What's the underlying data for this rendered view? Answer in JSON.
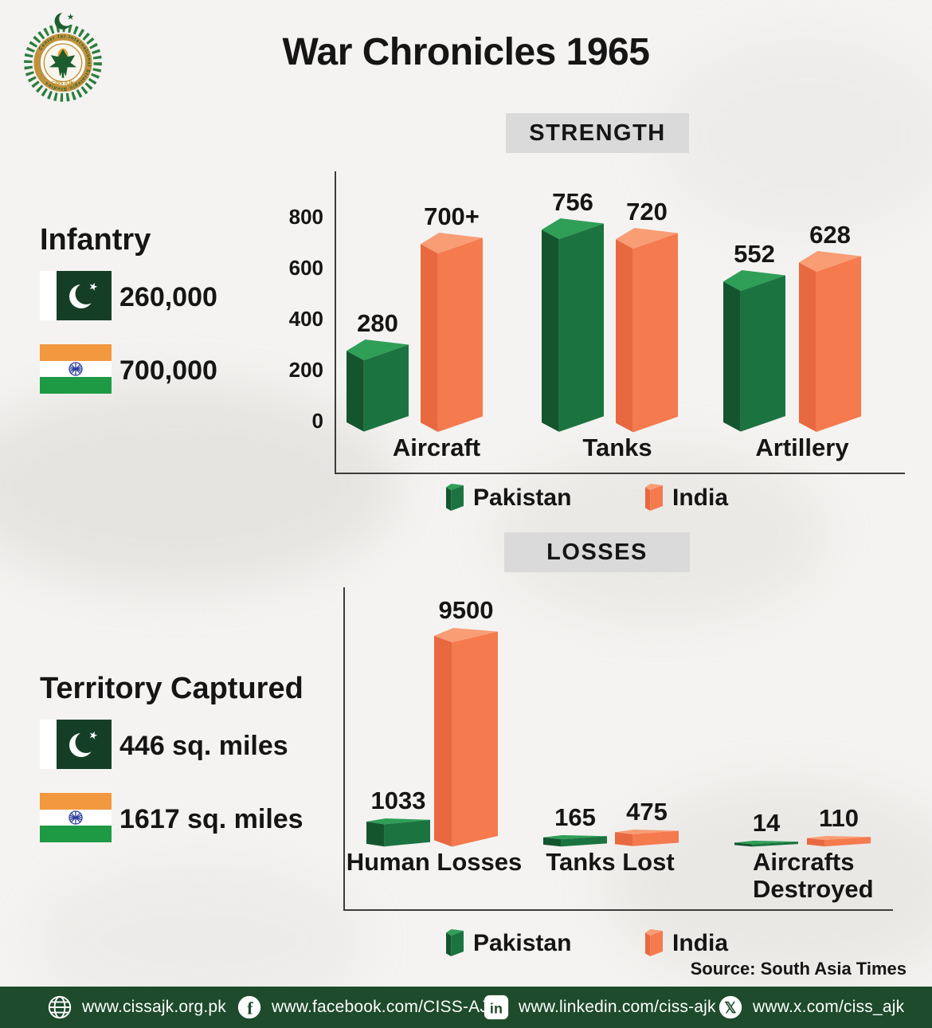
{
  "page": {
    "title": "War Chronicles 1965",
    "source": "Source: South Asia Times"
  },
  "logo": {
    "org": "Center for International Strategic Studies",
    "abbr": "CISS AJK"
  },
  "sections": {
    "strength": "STRENGTH",
    "losses": "LOSSES"
  },
  "infantry": {
    "title": "Infantry",
    "pakistan": "260,000",
    "india": "700,000"
  },
  "territory": {
    "title": "Territory Captured",
    "pakistan": "446 sq. miles",
    "india": "1617 sq. miles"
  },
  "legend": {
    "pakistan": "Pakistan",
    "india": "India"
  },
  "colors": {
    "pakistan": "#1b7440",
    "pakistan_side": "#14552e",
    "pakistan_top": "#2f9e57",
    "india": "#f57a4e",
    "india_side": "#e8693f",
    "india_top": "#f89d74",
    "flag_pak_green": "#143f26",
    "flag_india_saffron": "#f2983f",
    "flag_india_green": "#1e9a44",
    "chakra_blue": "#2f3f9e",
    "footer_green": "#1e4b2c",
    "section_bg": "#dadada"
  },
  "chart_data": [
    {
      "type": "bar",
      "title": "STRENGTH",
      "categories": [
        "Aircraft",
        "Tanks",
        "Artillery"
      ],
      "series": [
        {
          "name": "Pakistan",
          "values": [
            280,
            756,
            552
          ],
          "labels": [
            "280",
            "756",
            "552"
          ]
        },
        {
          "name": "India",
          "values": [
            700,
            720,
            628
          ],
          "labels": [
            "700+",
            "720",
            "628"
          ]
        }
      ],
      "ylabel": "",
      "yticks": [
        0,
        200,
        400,
        600,
        800
      ],
      "ylim": [
        0,
        800
      ],
      "grid": false,
      "legend_position": "bottom"
    },
    {
      "type": "bar",
      "title": "LOSSES",
      "categories": [
        "Human Losses",
        "Tanks Lost",
        "Aircrafts Destroyed"
      ],
      "series": [
        {
          "name": "Pakistan",
          "values": [
            1033,
            165,
            14
          ],
          "labels": [
            "1033",
            "165",
            "14"
          ]
        },
        {
          "name": "India",
          "values": [
            9500,
            475,
            110
          ],
          "labels": [
            "9500",
            "475",
            "110"
          ]
        }
      ],
      "yticks": [],
      "grid": false,
      "legend_position": "bottom"
    }
  ],
  "footer": {
    "items": [
      {
        "icon": "globe-icon",
        "label": "www.cissajk.org.pk"
      },
      {
        "icon": "facebook-icon",
        "label": "www.facebook.com/CISS-AJK"
      },
      {
        "icon": "linkedin-icon",
        "label": "www.linkedin.com/ciss-ajk"
      },
      {
        "icon": "x-icon",
        "label": "www.x.com/ciss_ajk"
      }
    ]
  }
}
